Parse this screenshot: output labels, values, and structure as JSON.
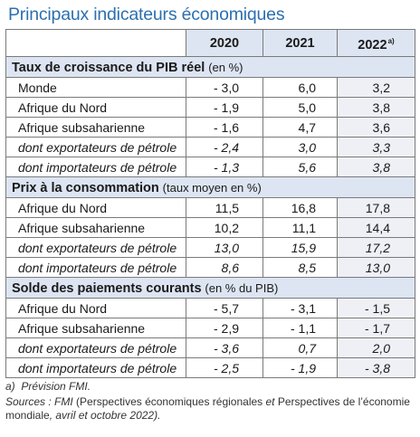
{
  "title": "Principaux indicateurs économiques",
  "years": {
    "y2020": "2020",
    "y2021": "2021",
    "y2022": "2022",
    "y2022_note": "a)"
  },
  "sections": [
    {
      "title": "Taux de croissance du PIB réel",
      "unit": "(en %)",
      "rows": [
        {
          "label": "Monde",
          "v2020": "- 3,0",
          "v2021": "6,0",
          "v2022": "3,2",
          "italic": false
        },
        {
          "label": "Afrique du Nord",
          "v2020": "- 1,9",
          "v2021": "5,0",
          "v2022": "3,8",
          "italic": false
        },
        {
          "label": "Afrique subsaharienne",
          "v2020": "- 1,6",
          "v2021": "4,7",
          "v2022": "3,6",
          "italic": false
        },
        {
          "label": "dont exportateurs de pétrole",
          "v2020": "- 2,4",
          "v2021": "3,0",
          "v2022": "3,3",
          "italic": true
        },
        {
          "label": "dont importateurs de pétrole",
          "v2020": "- 1,3",
          "v2021": "5,6",
          "v2022": "3,8",
          "italic": true
        }
      ]
    },
    {
      "title": "Prix à la consommation",
      "unit": "(taux moyen en %)",
      "rows": [
        {
          "label": "Afrique du Nord",
          "v2020": "11,5",
          "v2021": "16,8",
          "v2022": "17,8",
          "italic": false
        },
        {
          "label": "Afrique subsaharienne",
          "v2020": "10,2",
          "v2021": "11,1",
          "v2022": "14,4",
          "italic": false
        },
        {
          "label": "dont exportateurs de pétrole",
          "v2020": "13,0",
          "v2021": "15,9",
          "v2022": "17,2",
          "italic": true
        },
        {
          "label": "dont importateurs de pétrole",
          "v2020": "8,6",
          "v2021": "8,5",
          "v2022": "13,0",
          "italic": true
        }
      ]
    },
    {
      "title": "Solde des paiements courants",
      "unit": "(en % du PIB)",
      "rows": [
        {
          "label": "Afrique du Nord",
          "v2020": "- 5,7",
          "v2021": "- 3,1",
          "v2022": "- 1,5",
          "italic": false
        },
        {
          "label": "Afrique subsaharienne",
          "v2020": "- 2,9",
          "v2021": "- 1,1",
          "v2022": "- 1,7",
          "italic": false
        },
        {
          "label": "dont exportateurs de pétrole",
          "v2020": "- 3,6",
          "v2021": "0,7",
          "v2022": "2,0",
          "italic": true
        },
        {
          "label": "dont importateurs de pétrole",
          "v2020": "- 2,5",
          "v2021": "- 1,9",
          "v2022": "- 3,8",
          "italic": true
        }
      ]
    }
  ],
  "footnotes": {
    "note_a_marker": "a)",
    "note_a_text": "Prévision FMI.",
    "sources_prefix": "Sources : ",
    "sources_org": "FMI",
    "sources_open": " (",
    "sources_pub1": "Perspectives économiques régionales",
    "sources_and": " et ",
    "sources_pub2": "Perspectives de l’économie mondiale",
    "sources_tail": ", avril et octobre 2022)."
  },
  "colors": {
    "title": "#2c6fb0",
    "header_fill": "#dde5f2",
    "col2022_fill": "#eef0f6",
    "border": "#7a7a7a"
  }
}
